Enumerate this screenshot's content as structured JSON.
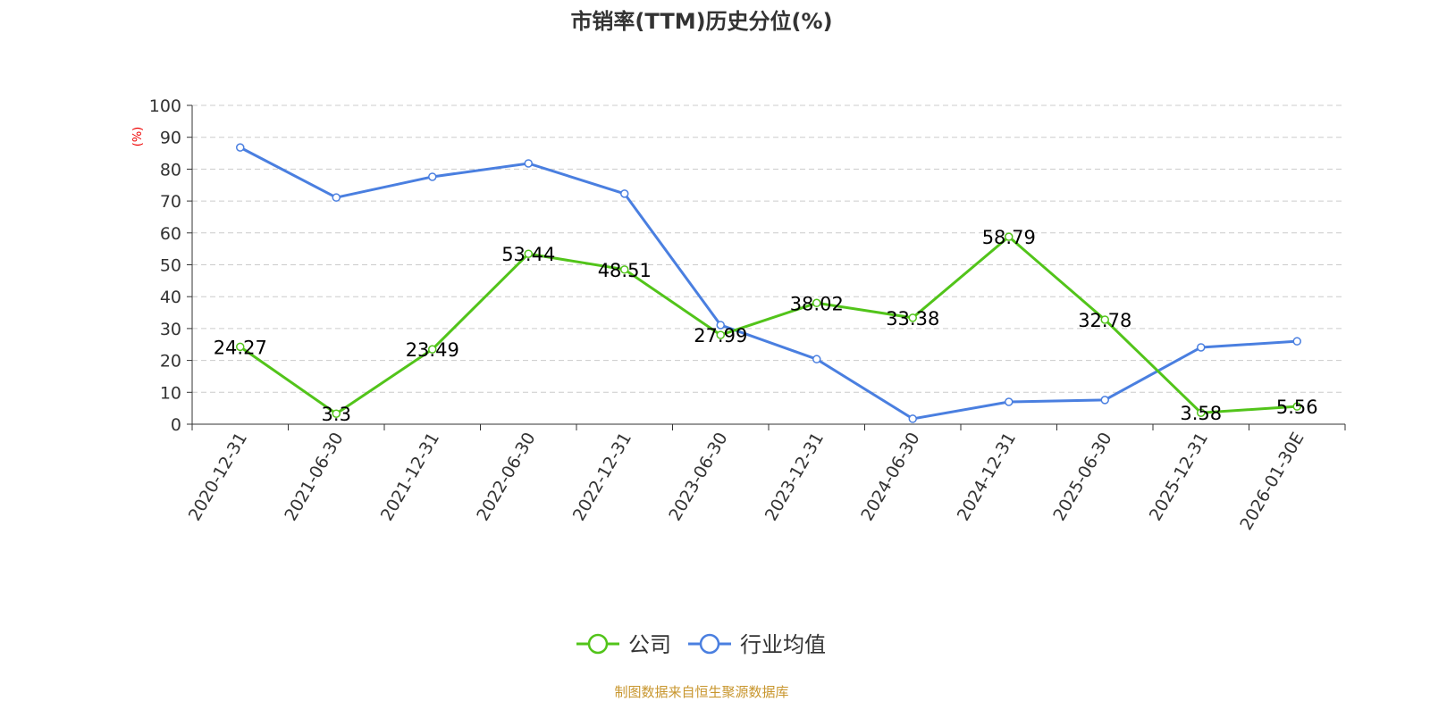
{
  "chart_data": {
    "type": "line",
    "title": "市销率(TTM)历史分位(%)",
    "ylabel": "(%)",
    "xlabel": "",
    "ylim": [
      0,
      100
    ],
    "yticks": [
      0,
      10,
      20,
      30,
      40,
      50,
      60,
      70,
      80,
      90,
      100
    ],
    "grid": true,
    "legend_placement": "bottom",
    "categories": [
      "2020-12-31",
      "2021-06-30",
      "2021-12-31",
      "2022-06-30",
      "2022-12-31",
      "2023-06-30",
      "2023-12-31",
      "2024-06-30",
      "2024-12-31",
      "2025-06-30",
      "2025-12-31",
      "2026-01-30E"
    ],
    "series": [
      {
        "name": "公司",
        "color": "#52c41a",
        "labels": true,
        "values": [
          24.27,
          3.3,
          23.49,
          53.44,
          48.51,
          27.99,
          38.02,
          33.38,
          58.79,
          32.78,
          3.58,
          5.56
        ]
      },
      {
        "name": "行业均值",
        "color": "#4a7fe0",
        "labels": false,
        "values": [
          86.8,
          71.1,
          77.6,
          81.8,
          72.3,
          31.1,
          20.4,
          1.7,
          7.0,
          7.6,
          24.1,
          26.0
        ]
      }
    ]
  },
  "footer": {
    "source": "制图数据来自恒生聚源数据库",
    "color": "#c8962e"
  }
}
